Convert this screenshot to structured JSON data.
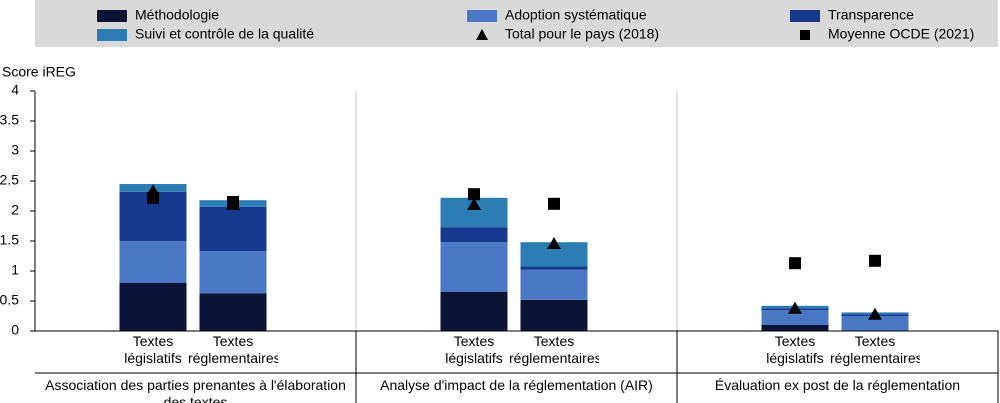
{
  "chart_data": {
    "type": "stacked-bar",
    "y_label": "Score iREG",
    "ylim": [
      0,
      4
    ],
    "yticks": [
      0,
      0.5,
      1,
      1.5,
      2,
      2.5,
      3,
      3.5,
      4
    ],
    "groups": [
      {
        "name": "Association des parties prenantes à l'élaboration des textes",
        "categories": [
          "Textes législatifs",
          "Textes réglementaires"
        ]
      },
      {
        "name": "Analyse d'impact de la réglementation (AIR)",
        "categories": [
          "Textes législatifs",
          "Textes réglementaires"
        ]
      },
      {
        "name": "Évaluation ex post de la réglementation",
        "categories": [
          "Textes législatifs",
          "Textes réglementaires"
        ]
      }
    ],
    "series": [
      {
        "name": "Méthodologie",
        "color": "#0b1437",
        "values": [
          0.8,
          0.63,
          0.65,
          0.52,
          0.1,
          0
        ]
      },
      {
        "name": "Adoption systématique",
        "color": "#4a78c5",
        "values": [
          0.7,
          0.7,
          0.83,
          0.5,
          0.25,
          0.25
        ]
      },
      {
        "name": "Transparence",
        "color": "#173a8e",
        "values": [
          0.82,
          0.74,
          0.25,
          0.06,
          0.03,
          0.03
        ]
      },
      {
        "name": "Suivi et contrôle de la qualité",
        "color": "#2d7db5",
        "values": [
          0.13,
          0.11,
          0.49,
          0.4,
          0.04,
          0.03
        ]
      }
    ],
    "markers": [
      {
        "name": "Total pour le pays (2018)",
        "marker": "triangle",
        "color": "#000000",
        "values": [
          2.33,
          2.1,
          2.1,
          1.45,
          0.37,
          0.27
        ]
      },
      {
        "name": "Moyenne OCDE (2021)",
        "marker": "square",
        "color": "#000000",
        "values": [
          2.22,
          2.15,
          2.28,
          2.12,
          1.13,
          1.17
        ]
      }
    ]
  }
}
